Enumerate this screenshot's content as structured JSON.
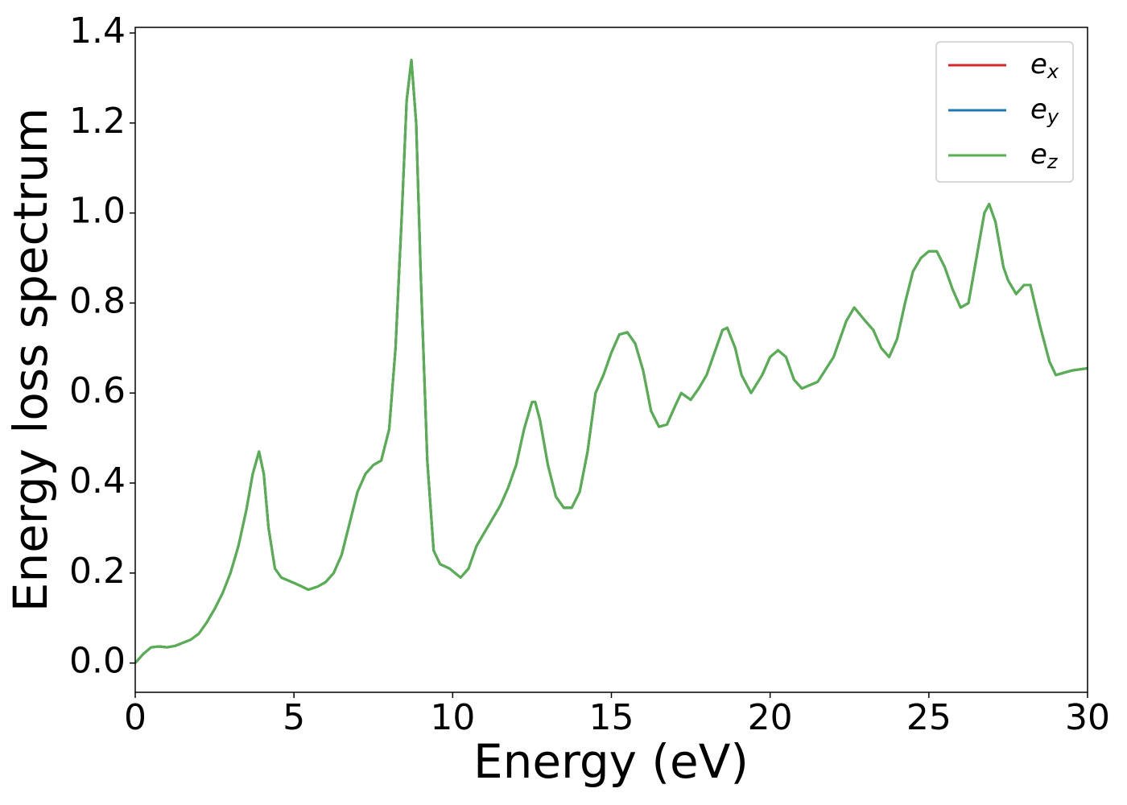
{
  "chart_data": {
    "type": "line",
    "xlabel": "Energy (eV)",
    "ylabel": "Energy loss spectrum",
    "x": [
      0,
      0.25,
      0.5,
      0.75,
      1.0,
      1.25,
      1.5,
      1.75,
      2.0,
      2.25,
      2.5,
      2.75,
      3.0,
      3.25,
      3.5,
      3.7,
      3.9,
      4.05,
      4.2,
      4.4,
      4.6,
      5.0,
      5.25,
      5.45,
      5.75,
      6.0,
      6.25,
      6.5,
      6.75,
      7.0,
      7.25,
      7.5,
      7.75,
      8.0,
      8.2,
      8.4,
      8.55,
      8.7,
      8.85,
      9.0,
      9.2,
      9.4,
      9.6,
      9.9,
      10.25,
      10.5,
      10.75,
      11.0,
      11.25,
      11.5,
      11.75,
      12.0,
      12.25,
      12.5,
      12.6,
      12.75,
      13.0,
      13.25,
      13.5,
      13.75,
      14.0,
      14.25,
      14.5,
      14.75,
      15.0,
      15.25,
      15.5,
      15.75,
      16.0,
      16.25,
      16.5,
      16.75,
      17.0,
      17.2,
      17.5,
      17.75,
      18.0,
      18.25,
      18.5,
      18.65,
      18.9,
      19.1,
      19.4,
      19.75,
      20.0,
      20.25,
      20.5,
      20.75,
      21.0,
      21.5,
      22.0,
      22.4,
      22.65,
      23.0,
      23.25,
      23.5,
      23.75,
      24.0,
      24.25,
      24.5,
      24.75,
      25.0,
      25.25,
      25.5,
      25.75,
      26.0,
      26.25,
      26.5,
      26.75,
      26.9,
      27.1,
      27.35,
      27.5,
      27.75,
      28.0,
      28.2,
      28.5,
      28.8,
      29.0,
      29.5,
      30
    ],
    "series": [
      {
        "name": "ex",
        "color": "#d62728",
        "values": [
          0,
          0.02,
          0.035,
          0.037,
          0.035,
          0.038,
          0.045,
          0.052,
          0.065,
          0.09,
          0.12,
          0.155,
          0.2,
          0.26,
          0.34,
          0.42,
          0.47,
          0.42,
          0.3,
          0.21,
          0.19,
          0.178,
          0.17,
          0.163,
          0.17,
          0.18,
          0.2,
          0.24,
          0.31,
          0.38,
          0.42,
          0.44,
          0.45,
          0.52,
          0.7,
          1.0,
          1.25,
          1.34,
          1.2,
          0.85,
          0.45,
          0.25,
          0.22,
          0.21,
          0.19,
          0.21,
          0.26,
          0.29,
          0.32,
          0.35,
          0.39,
          0.44,
          0.52,
          0.58,
          0.58,
          0.54,
          0.44,
          0.37,
          0.345,
          0.345,
          0.38,
          0.47,
          0.6,
          0.64,
          0.69,
          0.73,
          0.735,
          0.71,
          0.65,
          0.56,
          0.525,
          0.53,
          0.57,
          0.6,
          0.585,
          0.61,
          0.64,
          0.69,
          0.74,
          0.745,
          0.7,
          0.64,
          0.6,
          0.64,
          0.68,
          0.695,
          0.68,
          0.63,
          0.61,
          0.625,
          0.68,
          0.76,
          0.79,
          0.76,
          0.74,
          0.7,
          0.68,
          0.72,
          0.8,
          0.87,
          0.9,
          0.915,
          0.915,
          0.88,
          0.83,
          0.79,
          0.8,
          0.9,
          1.0,
          1.02,
          0.98,
          0.88,
          0.85,
          0.82,
          0.84,
          0.84,
          0.75,
          0.67,
          0.64,
          0.65,
          0.655
        ]
      },
      {
        "name": "ey",
        "color": "#1f77b4",
        "values": [
          0,
          0.02,
          0.035,
          0.037,
          0.035,
          0.038,
          0.045,
          0.052,
          0.065,
          0.09,
          0.12,
          0.155,
          0.2,
          0.26,
          0.34,
          0.42,
          0.47,
          0.42,
          0.3,
          0.21,
          0.19,
          0.178,
          0.17,
          0.163,
          0.17,
          0.18,
          0.2,
          0.24,
          0.31,
          0.38,
          0.42,
          0.44,
          0.45,
          0.52,
          0.7,
          1.0,
          1.25,
          1.34,
          1.2,
          0.85,
          0.45,
          0.25,
          0.22,
          0.21,
          0.19,
          0.21,
          0.26,
          0.29,
          0.32,
          0.35,
          0.39,
          0.44,
          0.52,
          0.58,
          0.58,
          0.54,
          0.44,
          0.37,
          0.345,
          0.345,
          0.38,
          0.47,
          0.6,
          0.64,
          0.69,
          0.73,
          0.735,
          0.71,
          0.65,
          0.56,
          0.525,
          0.53,
          0.57,
          0.6,
          0.585,
          0.61,
          0.64,
          0.69,
          0.74,
          0.745,
          0.7,
          0.64,
          0.6,
          0.64,
          0.68,
          0.695,
          0.68,
          0.63,
          0.61,
          0.625,
          0.68,
          0.76,
          0.79,
          0.76,
          0.74,
          0.7,
          0.68,
          0.72,
          0.8,
          0.87,
          0.9,
          0.915,
          0.915,
          0.88,
          0.83,
          0.79,
          0.8,
          0.9,
          1.0,
          1.02,
          0.98,
          0.88,
          0.85,
          0.82,
          0.84,
          0.84,
          0.75,
          0.67,
          0.64,
          0.65,
          0.655
        ]
      },
      {
        "name": "ez",
        "color": "#56b04f",
        "values": [
          0,
          0.02,
          0.035,
          0.037,
          0.035,
          0.038,
          0.045,
          0.052,
          0.065,
          0.09,
          0.12,
          0.155,
          0.2,
          0.26,
          0.34,
          0.42,
          0.47,
          0.42,
          0.3,
          0.21,
          0.19,
          0.178,
          0.17,
          0.163,
          0.17,
          0.18,
          0.2,
          0.24,
          0.31,
          0.38,
          0.42,
          0.44,
          0.45,
          0.52,
          0.7,
          1.0,
          1.25,
          1.34,
          1.2,
          0.85,
          0.45,
          0.25,
          0.22,
          0.21,
          0.19,
          0.21,
          0.26,
          0.29,
          0.32,
          0.35,
          0.39,
          0.44,
          0.52,
          0.58,
          0.58,
          0.54,
          0.44,
          0.37,
          0.345,
          0.345,
          0.38,
          0.47,
          0.6,
          0.64,
          0.69,
          0.73,
          0.735,
          0.71,
          0.65,
          0.56,
          0.525,
          0.53,
          0.57,
          0.6,
          0.585,
          0.61,
          0.64,
          0.69,
          0.74,
          0.745,
          0.7,
          0.64,
          0.6,
          0.64,
          0.68,
          0.695,
          0.68,
          0.63,
          0.61,
          0.625,
          0.68,
          0.76,
          0.79,
          0.76,
          0.74,
          0.7,
          0.68,
          0.72,
          0.8,
          0.87,
          0.9,
          0.915,
          0.915,
          0.88,
          0.83,
          0.79,
          0.8,
          0.9,
          1.0,
          1.02,
          0.98,
          0.88,
          0.85,
          0.82,
          0.84,
          0.84,
          0.75,
          0.67,
          0.64,
          0.65,
          0.655
        ]
      }
    ],
    "xlim": [
      0,
      30
    ],
    "xticks": [
      0,
      5,
      10,
      15,
      20,
      25,
      30
    ],
    "ylim": [
      -0.065,
      1.4125
    ],
    "yticks": [
      {
        "value": 0,
        "label": "0.0"
      },
      0.2,
      0.4,
      0.6,
      0.8,
      {
        "value": 1,
        "label": "1.0"
      },
      1.2,
      1.4
    ],
    "legend": "upper right",
    "grid": false
  }
}
